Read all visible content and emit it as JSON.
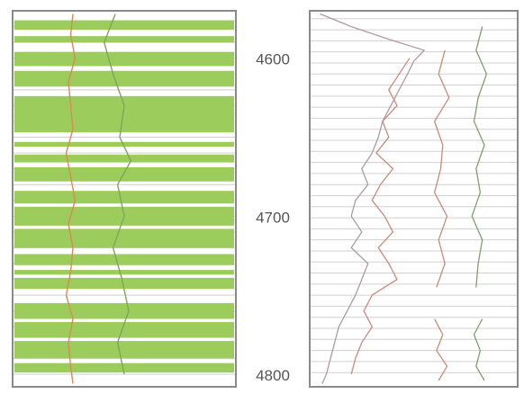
{
  "chart_data": [
    {
      "type": "area",
      "panel": "left-track",
      "colors": {
        "fill": "#9ccc5c",
        "line_red": "#d98a5a",
        "line_green": "#7fa55e",
        "frame": "#8a8a8a",
        "grid": "#cfcfcf"
      },
      "depth_range": [
        4570,
        4808
      ],
      "fill_intervals": [
        [
          4576,
          4582
        ],
        [
          4586,
          4590
        ],
        [
          4596,
          4605
        ],
        [
          4608,
          4618
        ],
        [
          4624,
          4647
        ],
        [
          4653,
          4656
        ],
        [
          4661,
          4666
        ],
        [
          4669,
          4678
        ],
        [
          4684,
          4692
        ],
        [
          4694,
          4706
        ],
        [
          4708,
          4720
        ],
        [
          4724,
          4731
        ],
        [
          4734,
          4737
        ],
        [
          4739,
          4746
        ],
        [
          4755,
          4765
        ],
        [
          4767,
          4777
        ],
        [
          4779,
          4790
        ],
        [
          4793,
          4799
        ]
      ],
      "series": [
        {
          "depth": [
            4572,
            4585,
            4600,
            4615,
            4630,
            4645,
            4660,
            4675,
            4690,
            4705,
            4720,
            4735,
            4750,
            4765,
            4780,
            4795,
            4806
          ],
          "values": [
            0.27,
            0.26,
            0.28,
            0.25,
            0.26,
            0.27,
            0.24,
            0.26,
            0.28,
            0.25,
            0.27,
            0.26,
            0.24,
            0.27,
            0.25,
            0.26,
            0.27
          ]
        },
        {
          "depth": [
            4572,
            4590,
            4610,
            4630,
            4650,
            4665,
            4680,
            4700,
            4720,
            4740,
            4760,
            4780,
            4800
          ],
          "values": [
            0.46,
            0.41,
            0.45,
            0.5,
            0.48,
            0.53,
            0.47,
            0.5,
            0.45,
            0.49,
            0.52,
            0.47,
            0.5
          ]
        }
      ]
    },
    {
      "type": "line",
      "panel": "depth-scale",
      "ylim": [
        4570,
        4808
      ],
      "ytick_labels": [
        "4600",
        "4700",
        "4800"
      ],
      "yticks": [
        4600,
        4700,
        4800
      ]
    },
    {
      "type": "line",
      "panel": "right-track",
      "colors": {
        "curve1": "#b09aa0",
        "curve2": "#c98a7e",
        "curve3": "#7ea06a",
        "grid": "#d0d0d0",
        "frame": "#8a8a8a"
      },
      "ylim": [
        4570,
        4808
      ],
      "grid": true,
      "series": [
        {
          "depth": [
            4572,
            4580,
            4588,
            4595,
            4602,
            4610,
            4620,
            4630,
            4640,
            4650,
            4660,
            4670,
            4680,
            4690,
            4700,
            4710,
            4720,
            4730,
            4740,
            4750,
            4760,
            4770,
            4780,
            4790,
            4800,
            4806
          ],
          "values": [
            0.05,
            0.2,
            0.38,
            0.55,
            0.5,
            0.47,
            0.43,
            0.39,
            0.35,
            0.33,
            0.3,
            0.25,
            0.28,
            0.22,
            0.2,
            0.25,
            0.2,
            0.28,
            0.25,
            0.22,
            0.18,
            0.14,
            0.12,
            0.1,
            0.08,
            0.06
          ]
        },
        {
          "depth": [
            4600,
            4610,
            4620,
            4630,
            4640,
            4650,
            4660,
            4670,
            4680,
            4690,
            4700,
            4710,
            4720,
            4730,
            4740,
            4750,
            4760,
            4770,
            4780,
            4790,
            4800
          ],
          "values": [
            0.48,
            0.43,
            0.38,
            0.42,
            0.35,
            0.38,
            0.32,
            0.4,
            0.34,
            0.3,
            0.36,
            0.4,
            0.33,
            0.38,
            0.42,
            0.3,
            0.26,
            0.3,
            0.25,
            0.22,
            0.2
          ]
        },
        {
          "depth": [
            4595,
            4610,
            4625,
            4640,
            4655,
            4670,
            4685,
            4700,
            4715,
            4730,
            4745
          ],
          "values": [
            0.65,
            0.62,
            0.67,
            0.6,
            0.64,
            0.63,
            0.6,
            0.66,
            0.62,
            0.65,
            0.61
          ]
        },
        {
          "depth": [
            4580,
            4595,
            4610,
            4625,
            4640,
            4655,
            4670,
            4685,
            4700,
            4715,
            4730,
            4745
          ],
          "values": [
            0.83,
            0.8,
            0.85,
            0.81,
            0.79,
            0.84,
            0.8,
            0.82,
            0.78,
            0.83,
            0.81,
            0.8
          ]
        },
        {
          "depth": [
            4765,
            4775,
            4785,
            4795,
            4804
          ],
          "values": [
            0.6,
            0.64,
            0.61,
            0.66,
            0.62
          ]
        },
        {
          "depth": [
            4765,
            4775,
            4785,
            4795,
            4804
          ],
          "values": [
            0.83,
            0.79,
            0.82,
            0.8,
            0.84
          ]
        }
      ]
    }
  ]
}
